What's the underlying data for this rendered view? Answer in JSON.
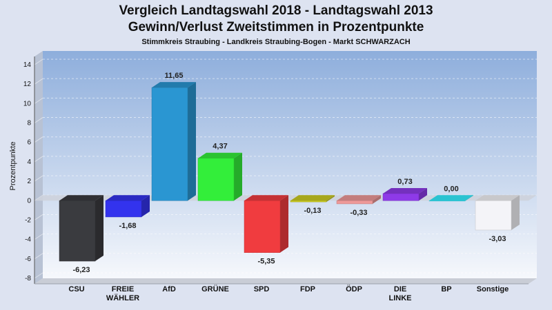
{
  "chart_data": {
    "type": "bar",
    "title": "Vergleich Landtagswahl 2018 - Landtagswahl 2013",
    "subtitle": "Gewinn/Verlust Zweitstimmen in Prozentpunkte",
    "subsubtitle": "Stimmkreis Straubing - Landkreis Straubing-Bogen - Markt SCHWARZACH",
    "ylabel": "Prozentpunkte",
    "ylim": [
      -8,
      14
    ],
    "yticks": [
      14,
      12,
      10,
      8,
      6,
      4,
      2,
      0,
      -2,
      -4,
      -6,
      -8
    ],
    "grid": true,
    "categories": [
      [
        "CSU"
      ],
      [
        "FREIE",
        "WÄHLER"
      ],
      [
        "AfD"
      ],
      [
        "GRÜNE"
      ],
      [
        "SPD"
      ],
      [
        "FDP"
      ],
      [
        "ÖDP"
      ],
      [
        "DIE",
        "LINKE"
      ],
      [
        "BP"
      ],
      [
        "Sonstige"
      ]
    ],
    "values": [
      -6.23,
      -1.68,
      11.65,
      4.37,
      -5.35,
      -0.13,
      -0.33,
      0.73,
      0.0,
      -3.03
    ],
    "value_labels": [
      "-6,23",
      "-1,68",
      "11,65",
      "4,37",
      "-5,35",
      "-0,13",
      "-0,33",
      "0,73",
      "0,00",
      "-3,03"
    ],
    "colors": [
      "#3a3b3f",
      "#3333ee",
      "#2a96d2",
      "#33ee3a",
      "#f03c3f",
      "#cccc22",
      "#ee9999",
      "#8e3ae8",
      "#33eeff",
      "#f4f4f8"
    ]
  }
}
